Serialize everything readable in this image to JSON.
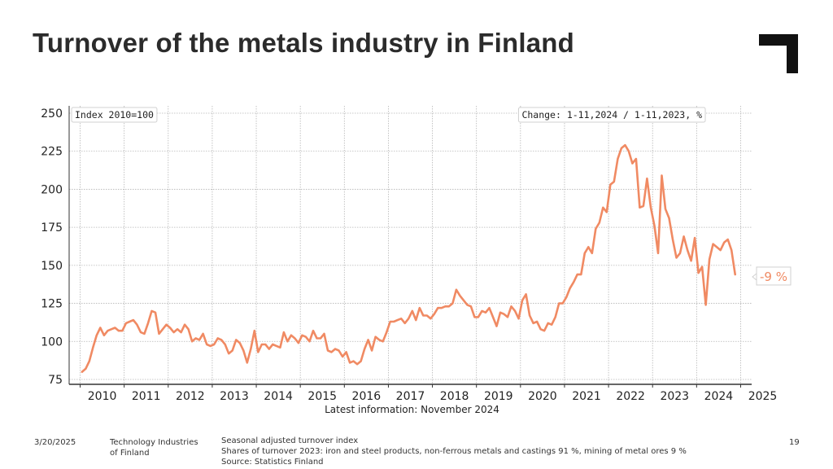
{
  "slide": {
    "title": "Turnover of the metals industry in Finland",
    "date": "3/20/2025",
    "organization": "Technology Industries of Finland",
    "notes": [
      "Seasonal adjusted turnover index",
      "Shares of turnover 2023: iron and steel products, non-ferrous metals and castings 91 %, mining of metal ores 9 %",
      "Source: Statistics Finland"
    ],
    "page_number": "19"
  },
  "colors": {
    "series": "#f08a63",
    "grid": "#b5b5b5",
    "axis": "#333333",
    "logo": "#111111"
  },
  "chart_data": {
    "type": "line",
    "box_label_left": "Index 2010=100",
    "box_label_right": "Change: 1-11,2024 / 1-11,2023, %",
    "change_label": "-9 %",
    "xlabel": "Latest information: November 2024",
    "ylabel": "",
    "ylim": [
      75,
      250
    ],
    "xlim": [
      2009.75,
      2025.25
    ],
    "yticks": [
      75,
      100,
      125,
      150,
      175,
      200,
      225,
      250
    ],
    "xticks": [
      "2010",
      "2011",
      "2012",
      "2013",
      "2014",
      "2015",
      "2016",
      "2017",
      "2018",
      "2019",
      "2020",
      "2021",
      "2022",
      "2023",
      "2024",
      "2025"
    ],
    "grid": true,
    "series": [
      {
        "start": "2010-01",
        "frequency": "monthly",
        "values": [
          80,
          82,
          87,
          96,
          104,
          109,
          104,
          107,
          108,
          109,
          107,
          107,
          112,
          113,
          114,
          111,
          106,
          105,
          112,
          120,
          119,
          105,
          108,
          111,
          109,
          106,
          108,
          106,
          111,
          108,
          100,
          102,
          101,
          105,
          98,
          97,
          98,
          102,
          101,
          98,
          92,
          94,
          101,
          99,
          94,
          86,
          95,
          107,
          93,
          98,
          98,
          95,
          98,
          97,
          96,
          106,
          100,
          104,
          102,
          99,
          104,
          103,
          100,
          107,
          102,
          102,
          105,
          94,
          93,
          95,
          94,
          90,
          93,
          86,
          87,
          85,
          87,
          95,
          101,
          94,
          103,
          101,
          100,
          106,
          113,
          113,
          114,
          115,
          112,
          115,
          120,
          114,
          122,
          117,
          117,
          115,
          118,
          122,
          122,
          123,
          123,
          125,
          134,
          130,
          127,
          124,
          123,
          116,
          116,
          120,
          119,
          122,
          116,
          110,
          119,
          118,
          116,
          123,
          120,
          115,
          127,
          131,
          117,
          112,
          113,
          108,
          107,
          112,
          111,
          116,
          125,
          125,
          129,
          135,
          139,
          144,
          144,
          158,
          162,
          158,
          174,
          178,
          188,
          185,
          203,
          205,
          220,
          227,
          229,
          225,
          217,
          220,
          188,
          189,
          207,
          188,
          176,
          158,
          209,
          187,
          181,
          167,
          155,
          158,
          169,
          160,
          153,
          168,
          145,
          149,
          124,
          154,
          164,
          162,
          160,
          165,
          167,
          160,
          144
        ]
      }
    ]
  }
}
